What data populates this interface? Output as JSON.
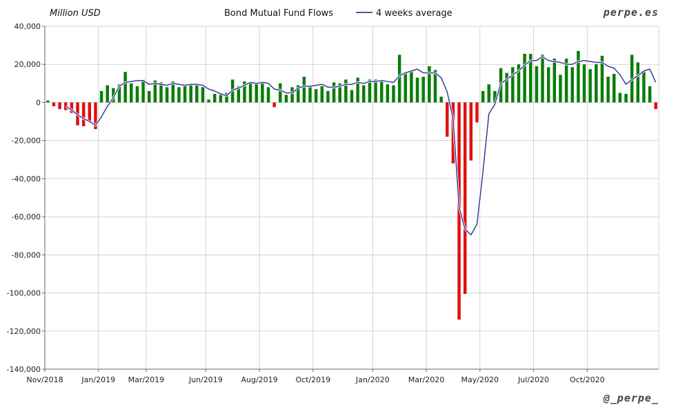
{
  "header": {
    "unit": "Million USD",
    "title": "Bond Mutual Fund Flows",
    "legend_line": "4 weeks average",
    "brand_top": "perpe.es",
    "brand_bottom": "@_perpe_"
  },
  "colors": {
    "positive": "#0a7d0a",
    "negative": "#e01010",
    "average_line": "#3a3a9a",
    "grid": "#c8c8c8",
    "axis": "#666666"
  },
  "chart_data": {
    "type": "bar",
    "title": "Bond Mutual Fund Flows",
    "ylabel": "Million USD",
    "ylim": [
      -140000,
      40000
    ],
    "yticks": [
      40000,
      20000,
      0,
      -20000,
      -40000,
      -60000,
      -80000,
      -100000,
      -120000,
      -140000
    ],
    "ytick_labels": [
      "40,000",
      "20,000",
      "0",
      "-20,000",
      "-40,000",
      "-60,000",
      "-80,000",
      "-100,000",
      "-120,000",
      "-140,000"
    ],
    "xlabels": [
      {
        "label": "Nov/2018",
        "week": 0
      },
      {
        "label": "Jan/2019",
        "week": 9
      },
      {
        "label": "Mar/2019",
        "week": 17
      },
      {
        "label": "Jun/2019",
        "week": 27
      },
      {
        "label": "Aug/2019",
        "week": 36
      },
      {
        "label": "Oct/2019",
        "week": 45
      },
      {
        "label": "Jan/2020",
        "week": 55
      },
      {
        "label": "Mar/2020",
        "week": 64
      },
      {
        "label": "May/2020",
        "week": 73
      },
      {
        "label": "Jul/2020",
        "week": 82
      },
      {
        "label": "Oct/2020",
        "week": 91
      }
    ],
    "grid": true,
    "legend": "top-center",
    "series": [
      {
        "name": "Weekly flows",
        "kind": "bar",
        "values": [
          1000,
          -2000,
          -3500,
          -4000,
          -5500,
          -12000,
          -12500,
          -10000,
          -14000,
          6000,
          9000,
          7500,
          9500,
          16000,
          10000,
          8500,
          12000,
          6000,
          11500,
          10500,
          8000,
          11000,
          8000,
          9500,
          9500,
          10000,
          8000,
          1500,
          4500,
          4000,
          5000,
          12000,
          8500,
          11000,
          10500,
          10000,
          11000,
          8000,
          -2500,
          10000,
          4000,
          8000,
          9000,
          13500,
          9000,
          7000,
          8500,
          6000,
          10500,
          10000,
          12000,
          6500,
          13000,
          9000,
          12000,
          12000,
          11000,
          9500,
          9000,
          25000,
          16000,
          16000,
          13000,
          13500,
          19000,
          17000,
          3000,
          -18000,
          -32000,
          -114000,
          -100500,
          -30500,
          -10500,
          6000,
          9500,
          6000,
          18000,
          15500,
          18500,
          20000,
          25500,
          25500,
          19000,
          25000,
          18500,
          23000,
          14500,
          23000,
          18500,
          27000,
          20000,
          17500,
          20000,
          24500,
          13500,
          15000,
          5000,
          4500,
          25000,
          21000,
          16000,
          8500,
          -3500
        ]
      },
      {
        "name": "4 weeks average",
        "kind": "line",
        "values": [
          null,
          null,
          null,
          -2000,
          -4000,
          -6500,
          -8500,
          -10000,
          -12000,
          -7500,
          -2000,
          2500,
          8500,
          10500,
          11000,
          11500,
          11500,
          9500,
          10000,
          9500,
          9000,
          10000,
          9500,
          9000,
          9500,
          9500,
          9000,
          7000,
          6000,
          4500,
          3500,
          6500,
          7500,
          9000,
          10500,
          10000,
          10500,
          10000,
          7000,
          6500,
          5000,
          5000,
          7500,
          8500,
          8500,
          9000,
          9500,
          8000,
          8000,
          8500,
          9500,
          9500,
          10500,
          10000,
          11000,
          11000,
          11500,
          11000,
          10500,
          14000,
          15500,
          16500,
          17500,
          15500,
          15500,
          15500,
          13000,
          5500,
          -8500,
          -55000,
          -66500,
          -69500,
          -64000,
          -36500,
          -6000,
          -1000,
          10000,
          12000,
          14500,
          16500,
          19500,
          22000,
          22000,
          24000,
          22000,
          21500,
          21000,
          20000,
          20000,
          21500,
          22000,
          21500,
          21000,
          21000,
          19000,
          18000,
          14500,
          9500,
          12000,
          14000,
          16500,
          17500,
          10500
        ]
      }
    ]
  }
}
